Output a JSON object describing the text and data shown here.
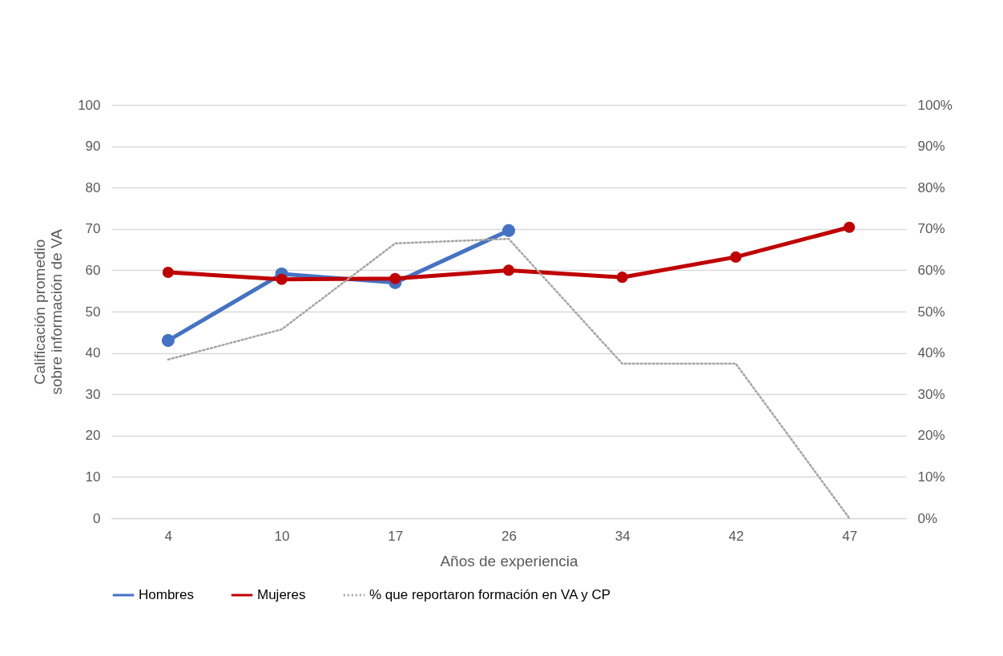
{
  "chart_data": {
    "type": "line",
    "xlabel": "Años de experiencia",
    "ylabel": "Calificación promedio  sobre información de VA",
    "categories": [
      "4",
      "10",
      "17",
      "26",
      "34",
      "42",
      "47"
    ],
    "ylim": [
      0,
      100
    ],
    "yticks": [
      0,
      10,
      20,
      30,
      40,
      50,
      60,
      70,
      80,
      90,
      100
    ],
    "y2lim": [
      0,
      100
    ],
    "y2ticks": [
      {
        "value": 0,
        "label": "0%"
      },
      {
        "value": 10,
        "label": "10%"
      },
      {
        "value": 20,
        "label": "20%"
      },
      {
        "value": 30,
        "label": "30%"
      },
      {
        "value": 40,
        "label": "40%"
      },
      {
        "value": 50,
        "label": "50%"
      },
      {
        "value": 60,
        "label": "60%"
      },
      {
        "value": 70,
        "label": "70%"
      },
      {
        "value": 80,
        "label": "80%"
      },
      {
        "value": 90,
        "label": "90%"
      },
      {
        "value": 100,
        "label": "100%"
      }
    ],
    "grid": "y",
    "legend": "bottom",
    "marker": "circle",
    "series": [
      {
        "name": "Hombres",
        "color": "#4472c4",
        "values": [
          43,
          59.1,
          57,
          69.6,
          null,
          null,
          null
        ]
      },
      {
        "name": "Mujeres",
        "color": "#c00000",
        "values": [
          59.5,
          57.8,
          58,
          60,
          58.3,
          63.2,
          70.4
        ]
      },
      {
        "name": "%  que reportaron formación en VA y CP",
        "color": "#a5a5a5",
        "values": [
          38.4,
          45.7,
          66.5,
          67.6,
          37.4,
          37.4,
          0
        ],
        "axis": "y2",
        "line_style": "dotted",
        "marker": "none"
      }
    ]
  }
}
